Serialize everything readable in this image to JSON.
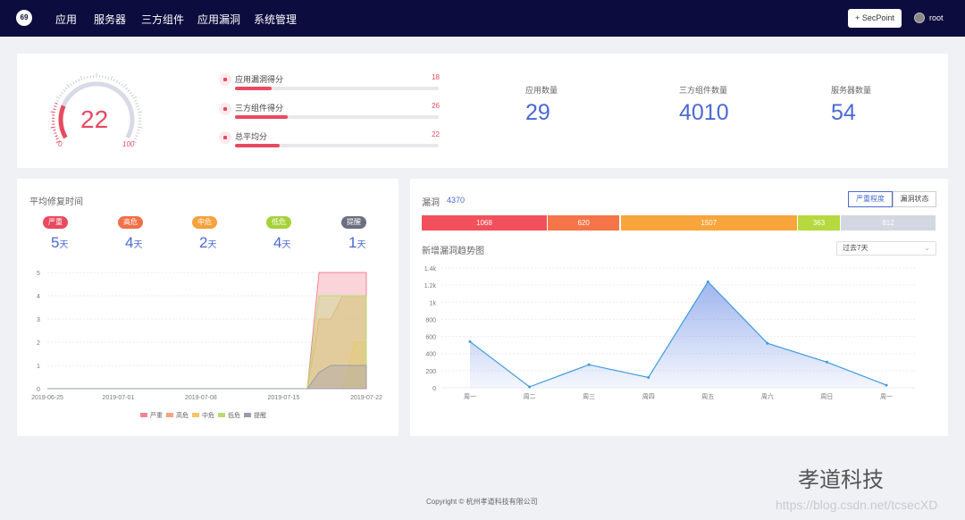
{
  "nav": {
    "logo_text": "69",
    "items": [
      "应用",
      "服务器",
      "三方组件",
      "应用漏洞",
      "系统管理"
    ],
    "secpoint_label": "+ SecPoint",
    "user_name": "root"
  },
  "summary": {
    "gauge_score": "22",
    "gauge_min": "0",
    "gauge_max": "100",
    "gauge_value": 22,
    "scores": [
      {
        "label": "应用漏洞得分",
        "value": "18",
        "percent": 18
      },
      {
        "label": "三方组件得分",
        "value": "26",
        "percent": 26
      },
      {
        "label": "总平均分",
        "value": "22",
        "percent": 22
      }
    ],
    "stats": [
      {
        "label": "应用数量",
        "value": "29"
      },
      {
        "label": "三方组件数量",
        "value": "4010"
      },
      {
        "label": "服务器数量",
        "value": "54"
      }
    ]
  },
  "repair": {
    "title": "平均修复时间",
    "unit": "天",
    "levels": [
      {
        "label": "严重",
        "days": "5",
        "color": "#e84a5f"
      },
      {
        "label": "高危",
        "days": "4",
        "color": "#f07048"
      },
      {
        "label": "中危",
        "days": "2",
        "color": "#f6a23c"
      },
      {
        "label": "低危",
        "days": "4",
        "color": "#a6d13a"
      },
      {
        "label": "提醒",
        "days": "1",
        "color": "#6b6f80"
      }
    ]
  },
  "vulns": {
    "title": "漏洞",
    "total": "4370",
    "tabs": [
      "严重程度",
      "漏洞状态"
    ],
    "segments": [
      {
        "value": "1068",
        "count": 1068,
        "color": "#f2505c"
      },
      {
        "value": "620",
        "count": 620,
        "color": "#f57548"
      },
      {
        "value": "1507",
        "count": 1507,
        "color": "#f8a63c"
      },
      {
        "value": "363",
        "count": 363,
        "color": "#b5d93e"
      },
      {
        "value": "812",
        "count": 812,
        "color": "#d3d7e2"
      }
    ],
    "trend_title": "新增漏洞趋势图",
    "range_select": "过去7天"
  },
  "footer": {
    "copyright": "Copyright © 杭州孝道科技有限公司"
  },
  "watermark": {
    "brand": "孝道科技",
    "url": "https://blog.csdn.net/tcsecXD"
  },
  "chart_data": [
    {
      "type": "area",
      "title": "",
      "x": [
        "2019-06-25",
        "2019-07-01",
        "2019-07-08",
        "2019-07-15",
        "2019-07-17",
        "2019-07-18",
        "2019-07-19",
        "2019-07-20",
        "2019-07-21",
        "2019-07-22"
      ],
      "x_ticks": [
        "2019-06-25",
        "2019-07-01",
        "2019-07-08",
        "2019-07-15",
        "2019-07-22"
      ],
      "ylim": [
        0,
        5
      ],
      "y_ticks": [
        0,
        1,
        2,
        3,
        4,
        5
      ],
      "legend_position": "bottom",
      "series": [
        {
          "name": "严重",
          "color": "#f08592",
          "values": [
            0,
            0,
            0,
            0,
            0,
            5,
            5,
            5,
            5,
            5
          ]
        },
        {
          "name": "高危",
          "color": "#f5a47f",
          "values": [
            0,
            0,
            0,
            0,
            0,
            3,
            3,
            4,
            4,
            4
          ]
        },
        {
          "name": "中危",
          "color": "#f8c36a",
          "values": [
            0,
            0,
            0,
            0,
            0,
            0,
            0,
            0,
            2,
            2
          ]
        },
        {
          "name": "低危",
          "color": "#b8dc6e",
          "values": [
            0,
            0,
            0,
            0,
            0,
            4,
            4,
            4,
            4,
            4
          ]
        },
        {
          "name": "提醒",
          "color": "#9a9cab",
          "values": [
            0,
            0,
            0,
            0,
            0,
            0.7,
            1,
            1,
            1,
            1
          ]
        }
      ]
    },
    {
      "type": "area",
      "title": "",
      "categories": [
        "周一",
        "周二",
        "周三",
        "周四",
        "周五",
        "周六",
        "周日",
        "周一"
      ],
      "values": [
        540,
        10,
        270,
        120,
        1240,
        520,
        300,
        30
      ],
      "ylim": [
        0,
        1400
      ],
      "y_ticks": [
        "0",
        "200",
        "400",
        "600",
        "800",
        "1k",
        "1.2k",
        "1.4k"
      ],
      "color": "#5078e0"
    }
  ]
}
